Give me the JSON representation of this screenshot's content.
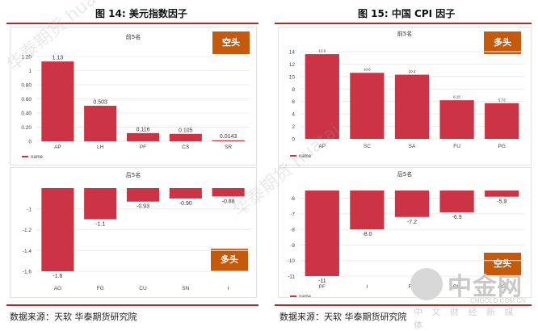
{
  "left_title": "图 14: 美元指数因子",
  "right_title": "图 15: 中国 CPI 因子",
  "source_left": "数据来源：天软 华泰期货研究院",
  "source_right": "数据来源：天软 华泰期货研究院",
  "watermark_text": "华泰期货 huatai",
  "logo": {
    "name": "中金网",
    "url": "CNGOLD.COM.CN",
    "tagline": "中 文 财 经 新 媒 体"
  },
  "colors": {
    "bar": "#cc3344",
    "accent": "#c55a0d",
    "rule": "#b02a2a"
  },
  "chart_data": [
    {
      "id": "usd-top",
      "type": "bar",
      "title": "前5名",
      "badge": "空头",
      "legend": "name",
      "categories": [
        "AP",
        "LH",
        "PF",
        "CS",
        "SR"
      ],
      "values": [
        1.13,
        0.503,
        0.116,
        0.105,
        0.0143
      ],
      "labels": [
        "1.13",
        "0.503",
        "0.116",
        "0.105",
        "0.0143"
      ],
      "ylim": [
        0,
        1.2
      ],
      "yticks": [
        0,
        0.2,
        0.4,
        0.6,
        0.8,
        1,
        1.2
      ],
      "ytick_labels": [
        "0",
        "0.20",
        "0.40",
        "0.60",
        "0.80",
        "1",
        "1.20"
      ]
    },
    {
      "id": "usd-bottom",
      "type": "bar",
      "title": "后5名",
      "badge": "多头",
      "legend": "",
      "categories": [
        "AG",
        "FG",
        "CU",
        "SN",
        "I"
      ],
      "values": [
        -1.6,
        -1.1,
        -0.93,
        -0.9,
        -0.88
      ],
      "labels": [
        "-1.6",
        "-1.1",
        "-0.93",
        "-0.90",
        "-0.88"
      ],
      "ylim": [
        -1.6,
        -0.8
      ],
      "yticks": [
        -1.6,
        -1.4,
        -1.2,
        -1
      ],
      "ytick_labels": [
        "-1.6",
        "-1.4",
        "-1.2",
        "-1"
      ]
    },
    {
      "id": "cpi-top",
      "type": "bar",
      "title": "前5名",
      "badge": "多头",
      "legend": "name",
      "categories": [
        "AP",
        "SC",
        "SA",
        "FU",
        "PG"
      ],
      "values": [
        13.6,
        10.6,
        10.3,
        6.2,
        5.73
      ],
      "labels": [
        "13.6",
        "10.6",
        "10.3",
        "6.20",
        "5.73"
      ],
      "ylim": [
        0,
        14
      ],
      "yticks": [
        0,
        2,
        4,
        6,
        8,
        10,
        12,
        14
      ],
      "ytick_labels": [
        "0",
        "2",
        "4",
        "6",
        "8",
        "10",
        "12",
        "14"
      ]
    },
    {
      "id": "cpi-bottom",
      "type": "bar",
      "title": "后5名",
      "badge": "空头",
      "legend": "name",
      "categories": [
        "PF",
        "I",
        "FG",
        "RU",
        "AG"
      ],
      "values": [
        -11,
        -8.0,
        -7.2,
        -6.9,
        -5.9
      ],
      "labels": [
        "-11",
        "-8.0",
        "-7.2",
        "-6.9",
        "-5.9"
      ],
      "ylim": [
        -11,
        -5.5
      ],
      "yticks": [
        -11,
        -10,
        -9,
        -8,
        -7,
        -6
      ],
      "ytick_labels": [
        "-11",
        "-10",
        "-9",
        "-8",
        "-7",
        "-6"
      ]
    }
  ]
}
